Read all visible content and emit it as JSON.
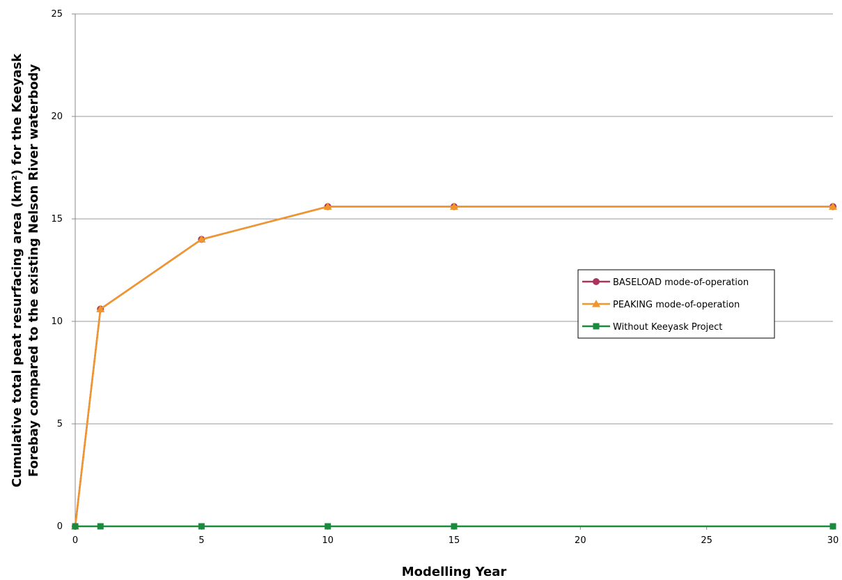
{
  "chart_data": {
    "type": "line",
    "x": [
      0,
      1,
      5,
      10,
      15,
      30
    ],
    "x_tick_labels": [
      "0",
      "5",
      "10",
      "15",
      "20",
      "25",
      "30"
    ],
    "y_tick_labels": [
      "0",
      "5",
      "10",
      "15",
      "20",
      "25"
    ],
    "ylim": [
      0,
      25
    ],
    "xlabel": "Modelling Year",
    "ylabel_line1": "Cumulative total peat resurfacing area (km²) for the Keeyask",
    "ylabel_line2": "Forebay compared to the existing Nelson River waterbody",
    "grid": true,
    "legend_position": "right",
    "series": [
      {
        "name": "BASELOAD mode-of-operation",
        "values": [
          0,
          10.6,
          14.0,
          15.6,
          15.6,
          15.6
        ],
        "color": "#a8345e",
        "marker": "circle"
      },
      {
        "name": "PEAKING mode-of-operation",
        "values": [
          0,
          10.6,
          14.0,
          15.6,
          15.6,
          15.6
        ],
        "color": "#f0962a",
        "marker": "triangle"
      },
      {
        "name": "Without Keeyask Project",
        "values": [
          0,
          0,
          0,
          0,
          0,
          0
        ],
        "color": "#1a8a3c",
        "marker": "square"
      }
    ]
  }
}
